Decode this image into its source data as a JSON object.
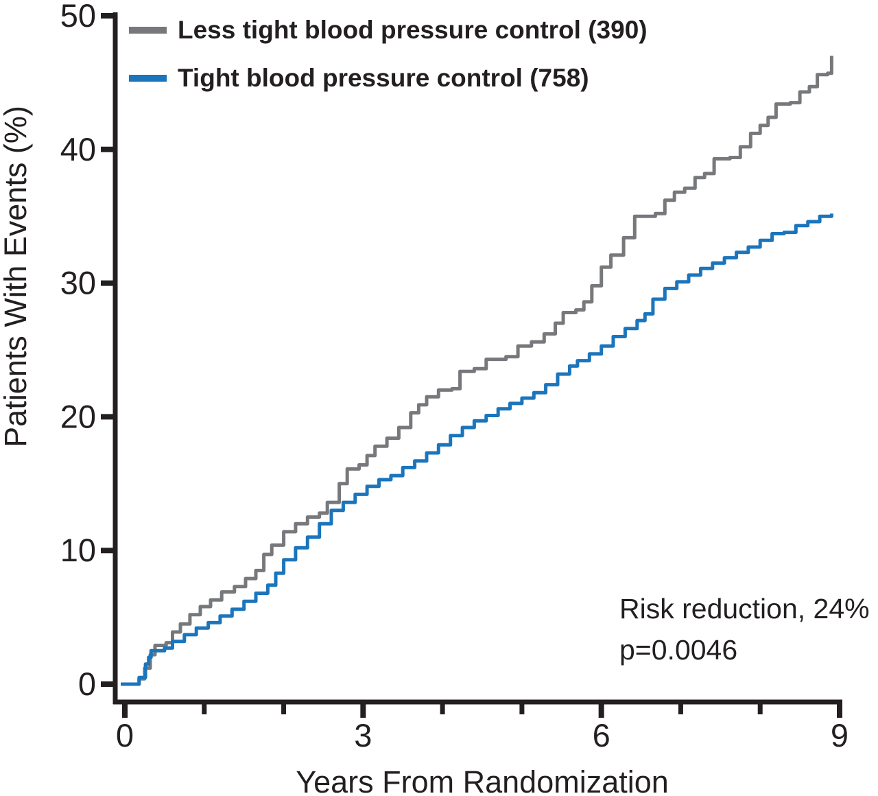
{
  "chart_data": {
    "type": "line",
    "subtype": "kaplan-meier-step",
    "title": "",
    "xlabel": "Years From Randomization",
    "ylabel": "Patients With Events (%)",
    "xlim": [
      0,
      9
    ],
    "ylim": [
      0,
      50
    ],
    "x_major_ticks": [
      0,
      3,
      6,
      9
    ],
    "x_minor_ticks": [
      1,
      2,
      4,
      5,
      7,
      8
    ],
    "y_ticks": [
      0,
      10,
      20,
      30,
      40,
      50
    ],
    "grid": "off",
    "legend_position": "top-left",
    "axis_color": "#231F20",
    "annotation": {
      "line1": "Risk reduction, 24%",
      "line2": "p=0.0046"
    },
    "series": [
      {
        "name": "Less tight blood pressure control (390)",
        "color": "#77787B",
        "points": [
          [
            0.0,
            0.0
          ],
          [
            0.12,
            0.0
          ],
          [
            0.18,
            0.4
          ],
          [
            0.25,
            1.2
          ],
          [
            0.32,
            2.2
          ],
          [
            0.38,
            2.9
          ],
          [
            0.52,
            3.1
          ],
          [
            0.6,
            3.9
          ],
          [
            0.7,
            4.5
          ],
          [
            0.82,
            5.2
          ],
          [
            0.95,
            5.8
          ],
          [
            1.08,
            6.3
          ],
          [
            1.22,
            6.9
          ],
          [
            1.38,
            7.3
          ],
          [
            1.52,
            7.9
          ],
          [
            1.65,
            8.5
          ],
          [
            1.75,
            9.7
          ],
          [
            1.85,
            10.4
          ],
          [
            2.0,
            11.4
          ],
          [
            2.15,
            12.0
          ],
          [
            2.3,
            12.5
          ],
          [
            2.45,
            12.8
          ],
          [
            2.55,
            13.6
          ],
          [
            2.7,
            15.0
          ],
          [
            2.8,
            16.1
          ],
          [
            2.95,
            16.4
          ],
          [
            3.05,
            17.1
          ],
          [
            3.15,
            17.8
          ],
          [
            3.3,
            18.4
          ],
          [
            3.45,
            19.2
          ],
          [
            3.6,
            20.3
          ],
          [
            3.7,
            20.9
          ],
          [
            3.8,
            21.5
          ],
          [
            3.95,
            22.0
          ],
          [
            4.12,
            22.1
          ],
          [
            4.22,
            23.4
          ],
          [
            4.4,
            23.6
          ],
          [
            4.55,
            24.3
          ],
          [
            4.8,
            24.5
          ],
          [
            4.95,
            25.3
          ],
          [
            5.12,
            25.6
          ],
          [
            5.28,
            26.2
          ],
          [
            5.42,
            27.0
          ],
          [
            5.52,
            27.8
          ],
          [
            5.68,
            28.0
          ],
          [
            5.78,
            28.6
          ],
          [
            5.88,
            29.8
          ],
          [
            6.0,
            31.2
          ],
          [
            6.12,
            32.1
          ],
          [
            6.28,
            33.4
          ],
          [
            6.42,
            35.0
          ],
          [
            6.68,
            35.2
          ],
          [
            6.8,
            36.2
          ],
          [
            6.92,
            36.8
          ],
          [
            7.05,
            37.1
          ],
          [
            7.18,
            37.9
          ],
          [
            7.3,
            38.2
          ],
          [
            7.42,
            39.3
          ],
          [
            7.62,
            39.4
          ],
          [
            7.75,
            40.2
          ],
          [
            7.88,
            41.2
          ],
          [
            8.0,
            41.8
          ],
          [
            8.1,
            42.4
          ],
          [
            8.2,
            43.4
          ],
          [
            8.38,
            43.5
          ],
          [
            8.5,
            44.3
          ],
          [
            8.62,
            44.7
          ],
          [
            8.72,
            45.6
          ],
          [
            8.85,
            45.7
          ],
          [
            8.9,
            47.0
          ]
        ]
      },
      {
        "name": "Tight blood pressure control (758)",
        "color": "#1B75BC",
        "points": [
          [
            0.0,
            0.0
          ],
          [
            0.1,
            0.0
          ],
          [
            0.18,
            0.5
          ],
          [
            0.26,
            1.5
          ],
          [
            0.3,
            2.0
          ],
          [
            0.33,
            2.5
          ],
          [
            0.5,
            2.7
          ],
          [
            0.6,
            3.2
          ],
          [
            0.75,
            3.7
          ],
          [
            0.9,
            4.2
          ],
          [
            1.05,
            4.6
          ],
          [
            1.2,
            5.1
          ],
          [
            1.35,
            5.6
          ],
          [
            1.5,
            6.2
          ],
          [
            1.65,
            6.8
          ],
          [
            1.8,
            7.4
          ],
          [
            1.9,
            8.3
          ],
          [
            2.0,
            9.3
          ],
          [
            2.15,
            10.2
          ],
          [
            2.3,
            11.0
          ],
          [
            2.45,
            12.0
          ],
          [
            2.6,
            13.0
          ],
          [
            2.75,
            13.6
          ],
          [
            2.9,
            14.2
          ],
          [
            3.05,
            14.8
          ],
          [
            3.2,
            15.3
          ],
          [
            3.35,
            15.6
          ],
          [
            3.5,
            16.2
          ],
          [
            3.65,
            16.7
          ],
          [
            3.8,
            17.3
          ],
          [
            3.95,
            17.9
          ],
          [
            4.1,
            18.6
          ],
          [
            4.25,
            19.2
          ],
          [
            4.4,
            19.7
          ],
          [
            4.55,
            20.1
          ],
          [
            4.7,
            20.6
          ],
          [
            4.85,
            21.0
          ],
          [
            5.0,
            21.4
          ],
          [
            5.15,
            21.8
          ],
          [
            5.3,
            22.4
          ],
          [
            5.45,
            23.2
          ],
          [
            5.6,
            23.8
          ],
          [
            5.7,
            24.2
          ],
          [
            5.85,
            24.7
          ],
          [
            6.0,
            25.3
          ],
          [
            6.15,
            26.0
          ],
          [
            6.3,
            26.6
          ],
          [
            6.45,
            27.2
          ],
          [
            6.55,
            27.7
          ],
          [
            6.65,
            28.8
          ],
          [
            6.8,
            29.6
          ],
          [
            6.95,
            30.1
          ],
          [
            7.1,
            30.6
          ],
          [
            7.25,
            31.1
          ],
          [
            7.4,
            31.5
          ],
          [
            7.55,
            31.9
          ],
          [
            7.7,
            32.3
          ],
          [
            7.85,
            32.7
          ],
          [
            8.0,
            33.2
          ],
          [
            8.15,
            33.7
          ],
          [
            8.3,
            33.8
          ],
          [
            8.45,
            34.3
          ],
          [
            8.6,
            34.6
          ],
          [
            8.75,
            35.0
          ],
          [
            8.9,
            35.2
          ]
        ]
      }
    ]
  }
}
